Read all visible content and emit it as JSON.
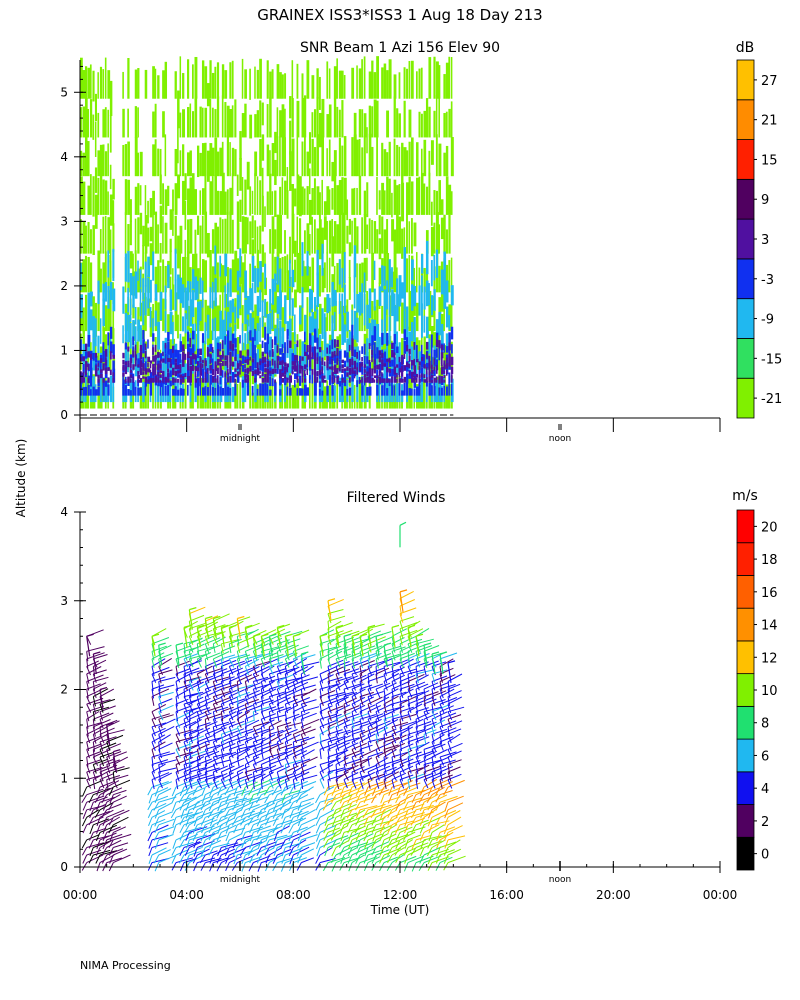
{
  "header": {
    "title": "GRAINEX ISS3*ISS3   1 Aug 18 Day 213"
  },
  "ylabel_shared": "Altitude (km)",
  "footer": "NIMA Processing",
  "chart_data": [
    {
      "type": "heatmap",
      "title": "SNR Beam 1 Azi 156 Elev 90",
      "ylim": [
        0,
        5.5
      ],
      "ytick_labels": [
        "0",
        "1",
        "2",
        "3",
        "4",
        "5"
      ],
      "ytick_values": [
        0,
        1,
        2,
        3,
        4,
        5
      ],
      "xlim_hours": [
        0,
        24
      ],
      "x_data_range_hours": [
        0,
        14
      ],
      "x_markers": [
        {
          "hour": 6,
          "label": "midnight"
        },
        {
          "hour": 18,
          "label": "noon"
        }
      ],
      "colorbar": {
        "unit": "dB",
        "tick_labels": [
          "-21",
          "-15",
          "-9",
          "-3",
          "3",
          "9",
          "15",
          "21",
          "27"
        ],
        "colors": [
          "#80f000",
          "#30e060",
          "#20b8f0",
          "#1030f0",
          "#5010a0",
          "#500060",
          "#ff2000",
          "#ff8c00",
          "#ffc000"
        ]
      },
      "signal_layers": [
        {
          "level": "-21",
          "alt_range": [
            0.1,
            5.5
          ]
        },
        {
          "level": "-9",
          "alt_range": [
            0.2,
            2.7
          ]
        },
        {
          "level": "-3",
          "alt_range": [
            0.3,
            1.4
          ]
        },
        {
          "level": "3",
          "alt_range": [
            0.5,
            1.2
          ]
        }
      ]
    },
    {
      "type": "barbs",
      "title": "Filtered Winds",
      "xlabel": "Time (UT)",
      "ylim": [
        0,
        4
      ],
      "ytick_labels": [
        "0",
        "1",
        "2",
        "3",
        "4"
      ],
      "ytick_values": [
        0,
        1,
        2,
        3,
        4
      ],
      "xlim_hours": [
        0,
        24
      ],
      "x_tick_labels": [
        "00:00",
        "04:00",
        "08:00",
        "12:00",
        "16:00",
        "20:00",
        "00:00"
      ],
      "x_tick_hours": [
        0,
        4,
        8,
        12,
        16,
        20,
        24
      ],
      "x_markers": [
        {
          "hour": 6,
          "label": "midnight"
        },
        {
          "hour": 18,
          "label": "noon"
        }
      ],
      "colorbar": {
        "unit": "m/s",
        "tick_labels": [
          "0",
          "2",
          "4",
          "6",
          "8",
          "10",
          "12",
          "14",
          "16",
          "18",
          "20"
        ],
        "colors": [
          "#000000",
          "#500060",
          "#1010f0",
          "#20b8f0",
          "#20e070",
          "#80f000",
          "#ffc000",
          "#ff9000",
          "#ff6000",
          "#ff2000",
          "#ff0000"
        ]
      },
      "barb_columns": [
        {
          "hour": 0.25,
          "top": 2.6
        },
        {
          "hour": 0.5,
          "top": 2.4
        },
        {
          "hour": 0.75,
          "top": 2.0
        },
        {
          "hour": 1.0,
          "top": 1.6
        },
        {
          "hour": 1.25,
          "top": 1.3
        },
        {
          "hour": 2.7,
          "top": 2.6
        },
        {
          "hour": 2.95,
          "top": 2.5
        },
        {
          "hour": 3.6,
          "top": 2.5
        },
        {
          "hour": 3.9,
          "top": 2.7
        },
        {
          "hour": 4.1,
          "top": 2.9
        },
        {
          "hour": 4.4,
          "top": 2.7
        },
        {
          "hour": 4.7,
          "top": 2.8
        },
        {
          "hour": 5.0,
          "top": 2.8
        },
        {
          "hour": 5.3,
          "top": 2.7
        },
        {
          "hour": 5.6,
          "top": 2.7
        },
        {
          "hour": 5.9,
          "top": 2.8
        },
        {
          "hour": 6.2,
          "top": 2.7
        },
        {
          "hour": 6.5,
          "top": 2.6
        },
        {
          "hour": 6.8,
          "top": 2.6
        },
        {
          "hour": 7.1,
          "top": 2.6
        },
        {
          "hour": 7.4,
          "top": 2.7
        },
        {
          "hour": 7.7,
          "top": 2.6
        },
        {
          "hour": 8.0,
          "top": 2.6
        },
        {
          "hour": 8.3,
          "top": 2.4
        },
        {
          "hour": 9.0,
          "top": 2.6
        },
        {
          "hour": 9.3,
          "top": 3.0
        },
        {
          "hour": 9.6,
          "top": 2.7
        },
        {
          "hour": 9.9,
          "top": 2.6
        },
        {
          "hour": 10.2,
          "top": 2.6
        },
        {
          "hour": 10.5,
          "top": 2.6
        },
        {
          "hour": 10.8,
          "top": 2.7
        },
        {
          "hour": 11.1,
          "top": 2.6
        },
        {
          "hour": 11.4,
          "top": 2.5
        },
        {
          "hour": 11.7,
          "top": 2.7
        },
        {
          "hour": 12.0,
          "top": 3.1
        },
        {
          "hour": 12.3,
          "top": 2.7
        },
        {
          "hour": 12.6,
          "top": 2.6
        },
        {
          "hour": 12.9,
          "top": 2.5
        },
        {
          "hour": 13.2,
          "top": 2.4
        },
        {
          "hour": 13.5,
          "top": 2.4
        },
        {
          "hour": 13.8,
          "top": 2.3
        }
      ],
      "upper_barbs": [
        {
          "hour": 12.0,
          "alt": 3.85
        }
      ]
    }
  ]
}
